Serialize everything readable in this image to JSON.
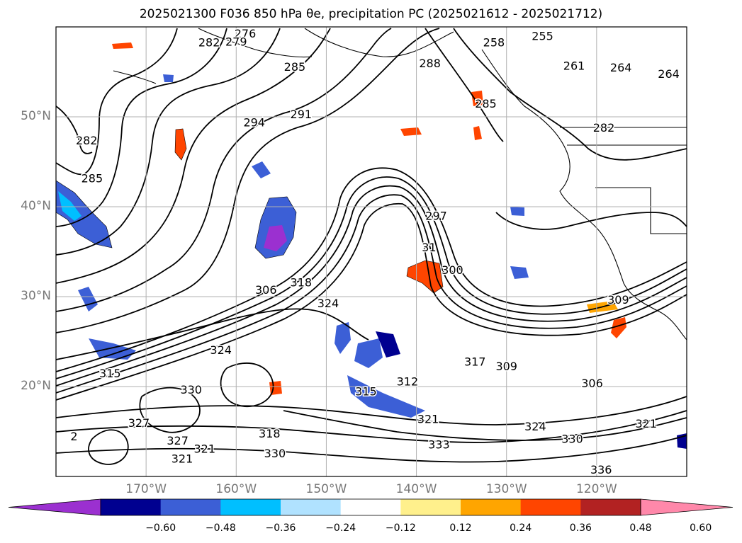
{
  "title": "2025021300 F036 850 hPa θe, precipitation PC (2025021612 - 2025021712)",
  "map": {
    "lon_range": [
      -180,
      -110
    ],
    "lat_range": [
      10,
      60
    ],
    "lat_labels": [
      {
        "lat": 50,
        "text": "50°N"
      },
      {
        "lat": 40,
        "text": "40°N"
      },
      {
        "lat": 30,
        "text": "30°N"
      },
      {
        "lat": 20,
        "text": "20°N"
      }
    ],
    "lon_labels": [
      {
        "lon": -170,
        "text": "170°W"
      },
      {
        "lon": -160,
        "text": "160°W"
      },
      {
        "lon": -150,
        "text": "150°W"
      },
      {
        "lon": -140,
        "text": "140°W"
      },
      {
        "lon": -130,
        "text": "130°W"
      },
      {
        "lon": -120,
        "text": "120°W"
      }
    ],
    "contour_labels": [
      {
        "text": "276",
        "lon": -159,
        "lat": 59.3
      },
      {
        "text": "279",
        "lon": -160,
        "lat": 58.4
      },
      {
        "text": "282",
        "lon": -163,
        "lat": 58.3
      },
      {
        "text": "285",
        "lon": -153.5,
        "lat": 55.6
      },
      {
        "text": "291",
        "lon": -152.8,
        "lat": 50.3
      },
      {
        "text": "294",
        "lon": -158,
        "lat": 49.4
      },
      {
        "text": "282",
        "lon": -176.6,
        "lat": 47.4
      },
      {
        "text": "285",
        "lon": -176,
        "lat": 43.2
      },
      {
        "text": "288",
        "lon": -138.5,
        "lat": 56
      },
      {
        "text": "285",
        "lon": -132.3,
        "lat": 51.5
      },
      {
        "text": "255",
        "lon": -126,
        "lat": 59
      },
      {
        "text": "258",
        "lon": -131.4,
        "lat": 58.3
      },
      {
        "text": "261",
        "lon": -122.5,
        "lat": 55.7
      },
      {
        "text": "264",
        "lon": -117.3,
        "lat": 55.5
      },
      {
        "text": "264",
        "lon": -112,
        "lat": 54.8
      },
      {
        "text": "282",
        "lon": -119.2,
        "lat": 48.8
      },
      {
        "text": "297",
        "lon": -137.8,
        "lat": 39
      },
      {
        "text": "31",
        "lon": -138.6,
        "lat": 35.5
      },
      {
        "text": "300",
        "lon": -136,
        "lat": 33
      },
      {
        "text": "306",
        "lon": -156.7,
        "lat": 30.8
      },
      {
        "text": "318",
        "lon": -152.8,
        "lat": 31.6
      },
      {
        "text": "324",
        "lon": -149.8,
        "lat": 29.3
      },
      {
        "text": "309",
        "lon": -117.6,
        "lat": 29.7
      },
      {
        "text": "324",
        "lon": -161.7,
        "lat": 24.1
      },
      {
        "text": "315",
        "lon": -174,
        "lat": 21.5
      },
      {
        "text": "317",
        "lon": -133.5,
        "lat": 22.8
      },
      {
        "text": "309",
        "lon": -130,
        "lat": 22.3
      },
      {
        "text": "312",
        "lon": -141,
        "lat": 20.6
      },
      {
        "text": "306",
        "lon": -120.5,
        "lat": 20.4
      },
      {
        "text": "330",
        "lon": -165,
        "lat": 19.7
      },
      {
        "text": "315",
        "lon": -145.6,
        "lat": 19.5
      },
      {
        "text": "321",
        "lon": -138.7,
        "lat": 16.4
      },
      {
        "text": "324",
        "lon": -126.8,
        "lat": 15.6
      },
      {
        "text": "321",
        "lon": -114.5,
        "lat": 15.9
      },
      {
        "text": "318",
        "lon": -156.3,
        "lat": 14.8
      },
      {
        "text": "327",
        "lon": -166.5,
        "lat": 14
      },
      {
        "text": "321",
        "lon": -163.5,
        "lat": 13.1
      },
      {
        "text": "330",
        "lon": -155.7,
        "lat": 12.6
      },
      {
        "text": "333",
        "lon": -137.5,
        "lat": 13.6
      },
      {
        "text": "330",
        "lon": -122.7,
        "lat": 14.2
      },
      {
        "text": "336",
        "lon": -119.5,
        "lat": 10.8
      },
      {
        "text": "327",
        "lon": -170.8,
        "lat": 16
      },
      {
        "text": "321",
        "lon": -166,
        "lat": 12
      },
      {
        "text": "2",
        "lon": -178,
        "lat": 14.5
      }
    ]
  },
  "colorbar": {
    "labels": [
      "−0.60",
      "−0.48",
      "−0.36",
      "−0.24",
      "−0.12",
      "0.12",
      "0.24",
      "0.36",
      "0.48",
      "0.60"
    ],
    "colors": [
      "#9b30d0",
      "#000090",
      "#3c5fd6",
      "#00bfff",
      "#b0e2ff",
      "#ffffff",
      "#fff08c",
      "#ffa500",
      "#ff4500",
      "#b22222",
      "#ff88aa"
    ]
  }
}
